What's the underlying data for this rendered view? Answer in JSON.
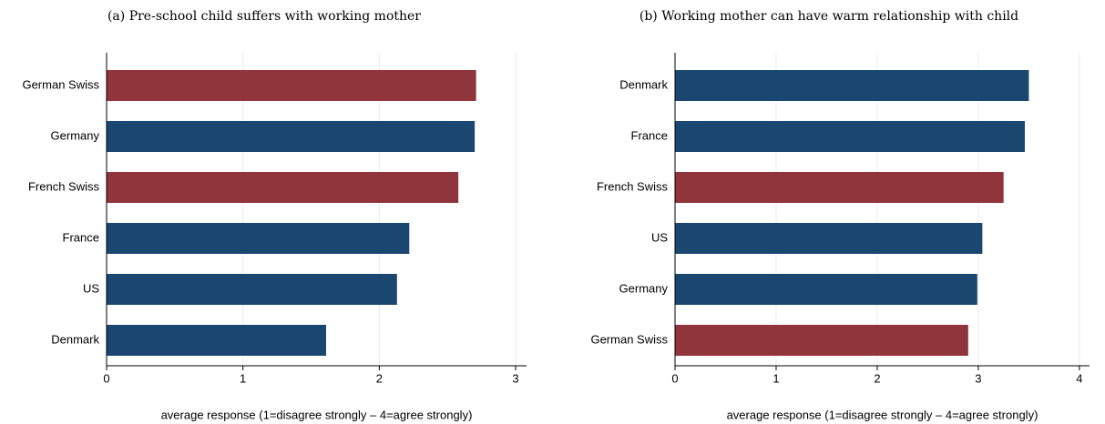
{
  "chart_data": [
    {
      "type": "bar",
      "title": "(a) Pre-school child suffers with working mother",
      "categories": [
        "German Swiss",
        "Germany",
        "French Swiss",
        "France",
        "US",
        "Denmark"
      ],
      "values": [
        2.71,
        2.7,
        2.58,
        2.22,
        2.13,
        1.61
      ],
      "colors": [
        "#90353b",
        "#1a476f",
        "#90353b",
        "#1a476f",
        "#1a476f",
        "#1a476f"
      ],
      "x_label": "average response (1=disagree strongly – 4=agree strongly)",
      "xlim": [
        0,
        3.08
      ],
      "xticks": [
        0,
        1,
        2,
        3
      ],
      "grid": true
    },
    {
      "type": "bar",
      "title": "(b) Working mother can have warm relationship with child",
      "categories": [
        "Denmark",
        "France",
        "French Swiss",
        "US",
        "Germany",
        "German Swiss"
      ],
      "values": [
        3.5,
        3.46,
        3.25,
        3.04,
        2.99,
        2.9
      ],
      "colors": [
        "#1a476f",
        "#1a476f",
        "#90353b",
        "#1a476f",
        "#1a476f",
        "#90353b"
      ],
      "x_label": "average response (1=disagree strongly – 4=agree strongly)",
      "xlim": [
        0,
        4.1
      ],
      "xticks": [
        0,
        1,
        2,
        3,
        4
      ],
      "grid": true
    }
  ]
}
